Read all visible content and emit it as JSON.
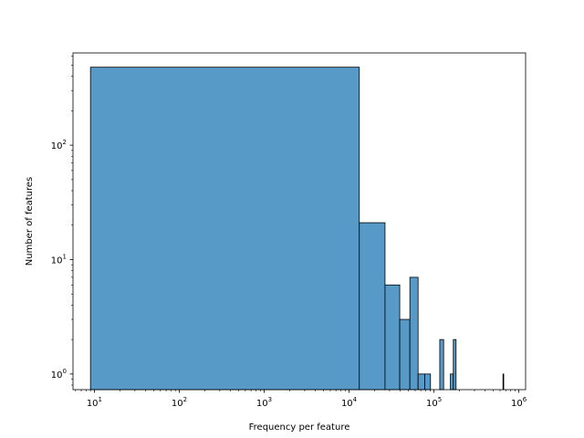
{
  "chart_data": {
    "type": "bar",
    "chart_kind": "histogram",
    "title": "",
    "xlabel": "Frequency per feature",
    "ylabel": "Number of features",
    "xscale": "log",
    "yscale": "log",
    "xlim": [
      5.6,
      1200000
    ],
    "ylim": [
      0.73,
      640
    ],
    "x_ticks": [
      {
        "value": 10,
        "base": "10",
        "exp": "1"
      },
      {
        "value": 100,
        "base": "10",
        "exp": "2"
      },
      {
        "value": 1000,
        "base": "10",
        "exp": "3"
      },
      {
        "value": 10000,
        "base": "10",
        "exp": "4"
      },
      {
        "value": 100000,
        "base": "10",
        "exp": "5"
      },
      {
        "value": 1000000,
        "base": "10",
        "exp": "6"
      }
    ],
    "y_ticks": [
      {
        "value": 1,
        "base": "10",
        "exp": "0"
      },
      {
        "value": 10,
        "base": "10",
        "exp": "1"
      },
      {
        "value": 100,
        "base": "10",
        "exp": "2"
      }
    ],
    "grid": false,
    "bars": [
      {
        "x0": 9,
        "x1": 13200,
        "count": 480
      },
      {
        "x0": 13200,
        "x1": 26500,
        "count": 21
      },
      {
        "x0": 26500,
        "x1": 39500,
        "count": 6
      },
      {
        "x0": 39500,
        "x1": 52000,
        "count": 3
      },
      {
        "x0": 52000,
        "x1": 65000,
        "count": 7
      },
      {
        "x0": 65000,
        "x1": 78000,
        "count": 1
      },
      {
        "x0": 78000,
        "x1": 91000,
        "count": 1
      },
      {
        "x0": 117000,
        "x1": 130000,
        "count": 2
      },
      {
        "x0": 156000,
        "x1": 169000,
        "count": 1
      },
      {
        "x0": 169000,
        "x1": 182000,
        "count": 2
      },
      {
        "x0": 650000,
        "x1": 663000,
        "count": 1
      }
    ],
    "colors": {
      "bar_fill": "#5799c7",
      "bar_edge": "#000000",
      "axis": "#000000"
    }
  }
}
